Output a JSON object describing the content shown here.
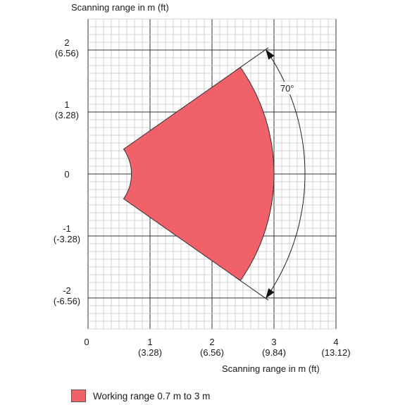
{
  "chart_data": {
    "type": "area",
    "title": "Scanning range in m (ft)",
    "xlabel": "Scanning range in m (ft)",
    "ylabel": "",
    "xlim": [
      0,
      4
    ],
    "ylim": [
      -2.5,
      2.5
    ],
    "grid": true,
    "x_ticks": [
      {
        "value": 0,
        "label": "0",
        "sub": ""
      },
      {
        "value": 1,
        "label": "1",
        "sub": "(3.28)"
      },
      {
        "value": 2,
        "label": "2",
        "sub": "(6.56)"
      },
      {
        "value": 3,
        "label": "3",
        "sub": "(9.84)"
      },
      {
        "value": 4,
        "label": "4",
        "sub": "(13.12)"
      }
    ],
    "y_ticks": [
      {
        "value": 2,
        "label": "2",
        "sub": "(6.56)"
      },
      {
        "value": 1,
        "label": "1",
        "sub": "(3.28)"
      },
      {
        "value": 0,
        "label": "0",
        "sub": ""
      },
      {
        "value": -1,
        "label": "-1",
        "sub": "(-3.28)"
      },
      {
        "value": -2,
        "label": "-2",
        "sub": "(-6.56)"
      }
    ],
    "region": {
      "name": "Working range 0.7 m to 3 m",
      "inner_radius": 0.7,
      "outer_radius": 3,
      "angle_deg": 70,
      "color": "#f0616a"
    },
    "annotation": "70°",
    "legend": "bottom-left"
  },
  "legend": {
    "label": "Working range 0.7 m to 3 m"
  }
}
